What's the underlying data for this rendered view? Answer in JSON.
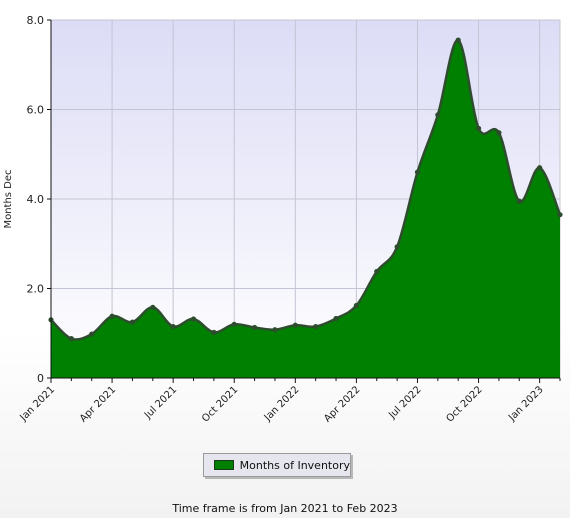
{
  "chart_data": {
    "type": "area",
    "ylabel": "Months Dec",
    "ylim": [
      0,
      8
    ],
    "yticks": [
      "0",
      "2.0",
      "4.0",
      "6.0",
      "8.0"
    ],
    "xticks": [
      "Jan 2021",
      "Apr 2021",
      "Jul 2021",
      "Oct 2021",
      "Jan 2022",
      "Apr 2022",
      "Jul 2022",
      "Oct 2022",
      "Jan 2023"
    ],
    "grid": true,
    "legend_position": "bottom",
    "colors": {
      "fill": "#008000",
      "line": "#2e4d2e",
      "plot_bg_top": "#dcdcf6",
      "plot_bg_bottom": "#ffffff"
    },
    "series": [
      {
        "name": "Months of Inventory",
        "x": [
          "Jan 2021",
          "Feb 2021",
          "Mar 2021",
          "Apr 2021",
          "May 2021",
          "Jun 2021",
          "Jul 2021",
          "Aug 2021",
          "Sep 2021",
          "Oct 2021",
          "Nov 2021",
          "Dec 2021",
          "Jan 2022",
          "Feb 2022",
          "Mar 2022",
          "Apr 2022",
          "May 2022",
          "Jun 2022",
          "Jul 2022",
          "Aug 2022",
          "Sep 2022",
          "Oct 2022",
          "Nov 2022",
          "Dec 2022",
          "Jan 2023",
          "Feb 2023"
        ],
        "values": [
          1.3,
          0.88,
          0.98,
          1.38,
          1.25,
          1.58,
          1.15,
          1.32,
          1.02,
          1.2,
          1.13,
          1.08,
          1.18,
          1.15,
          1.33,
          1.62,
          2.38,
          2.93,
          4.6,
          5.88,
          7.55,
          5.58,
          5.48,
          3.95,
          4.7,
          3.65
        ]
      }
    ]
  },
  "legend": {
    "label": "Months of Inventory"
  },
  "footnote": "Time frame is from Jan 2021 to Feb 2023"
}
